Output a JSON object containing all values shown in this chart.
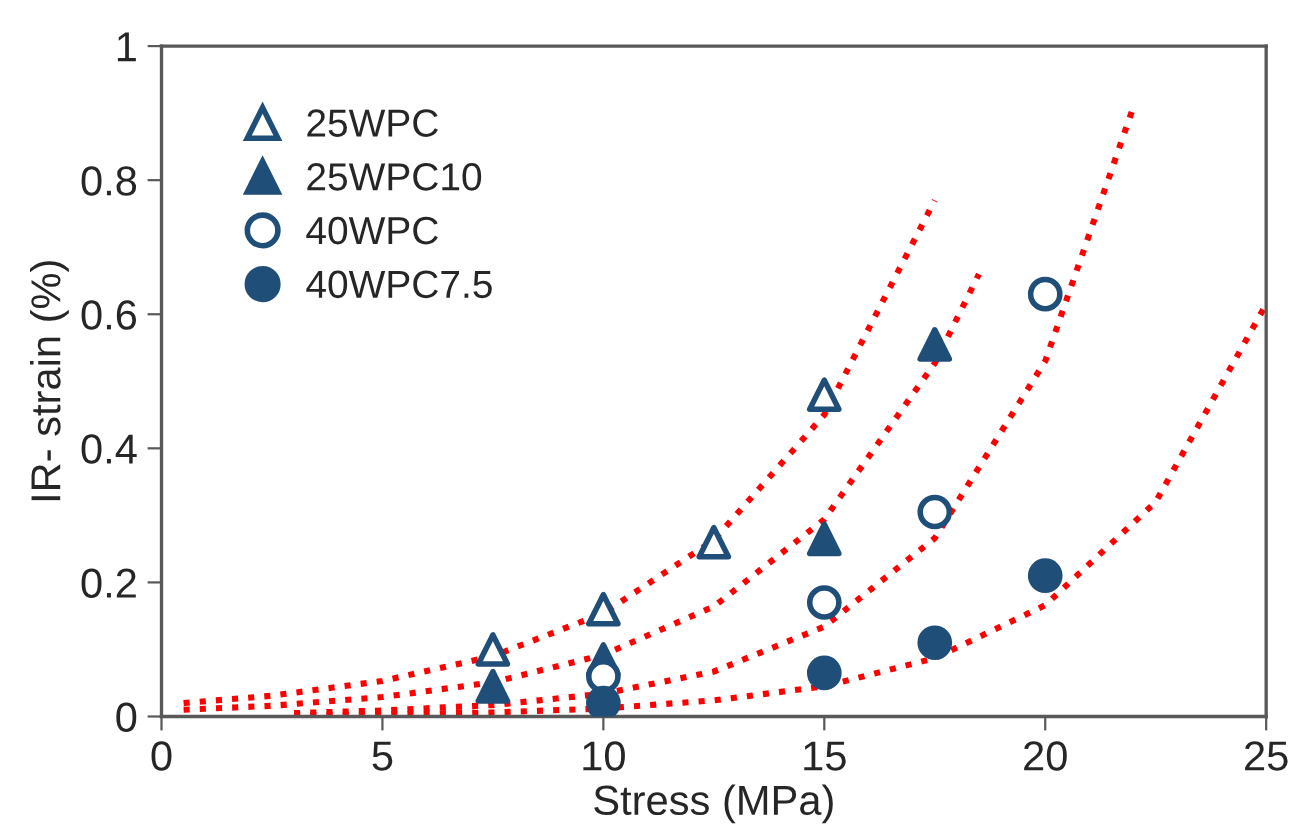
{
  "chart_data": {
    "type": "scatter",
    "xlabel": "Stress (MPa)",
    "ylabel": "IR- strain (%)",
    "xlim": [
      0,
      25
    ],
    "xticks": [
      0,
      5,
      10,
      15,
      20,
      25
    ],
    "ylim": [
      0,
      1
    ],
    "yticks": [
      0,
      0.2,
      0.4,
      0.6,
      0.8,
      1
    ],
    "grid": false,
    "legend": "top left",
    "series": [
      {
        "name": "25WPC",
        "marker": "triangle",
        "color": "#1f4e79",
        "colors": [
          "#ffffff",
          "#ffffff",
          "#ffffff",
          "#ffffff"
        ],
        "x": [
          7.5,
          10,
          12.5,
          15
        ],
        "values": [
          0.1,
          0.16,
          0.26,
          0.48
        ]
      },
      {
        "name": "25WPC10",
        "marker": "triangle",
        "color": "#1f4e79",
        "x": [
          7.5,
          10,
          15,
          17.5
        ],
        "values": [
          0.045,
          0.085,
          0.265,
          0.555
        ]
      },
      {
        "name": "40WPC",
        "marker": "circle",
        "color": "#1f4e79",
        "colors": [
          "#ffffff",
          "#ffffff",
          "#ffffff",
          "#ffffff"
        ],
        "x": [
          10,
          15,
          17.5,
          20
        ],
        "values": [
          0.06,
          0.17,
          0.305,
          0.63
        ]
      },
      {
        "name": "40WPC7.5",
        "marker": "circle",
        "color": "#1f4e79",
        "x": [
          10,
          15,
          17.5,
          20
        ],
        "values": [
          0.02,
          0.065,
          0.11,
          0.21
        ]
      },
      {
        "type": "line",
        "line_style": "dotted",
        "marker": "none",
        "color": "#ff0000",
        "x": [
          0.5,
          2.5,
          5,
          7.5,
          10,
          12.5,
          15,
          17.5
        ],
        "values": [
          0.02,
          0.031,
          0.053,
          0.09,
          0.154,
          0.263,
          0.45,
          0.77
        ]
      },
      {
        "type": "line",
        "line_style": "dotted",
        "marker": "none",
        "color": "#ff0000",
        "x": [
          0.5,
          2.5,
          5,
          7.5,
          10,
          12.5,
          15,
          17.5,
          18.5
        ],
        "values": [
          0.01,
          0.016,
          0.029,
          0.051,
          0.092,
          0.164,
          0.294,
          0.527,
          0.66
        ]
      },
      {
        "type": "line",
        "line_style": "dotted",
        "marker": "none",
        "color": "#ff0000",
        "x": [
          3,
          5,
          7.5,
          10,
          12.5,
          15,
          17.5,
          20,
          22
        ],
        "values": [
          0.005,
          0.009,
          0.017,
          0.034,
          0.067,
          0.134,
          0.266,
          0.53,
          0.91
        ]
      },
      {
        "type": "line",
        "line_style": "dotted",
        "marker": "none",
        "color": "#ff0000",
        "x": [
          3,
          5,
          7.5,
          10,
          12.5,
          15,
          17.5,
          20,
          22.5,
          25
        ],
        "values": [
          0.002,
          0.003,
          0.006,
          0.012,
          0.024,
          0.045,
          0.087,
          0.166,
          0.32,
          0.615
        ]
      }
    ]
  }
}
